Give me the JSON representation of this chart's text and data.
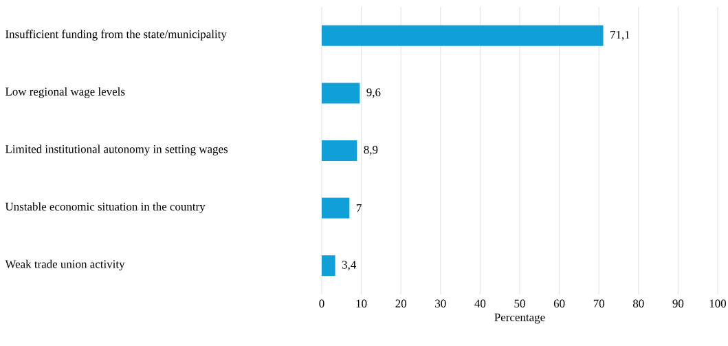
{
  "chart_data": {
    "type": "bar",
    "orientation": "horizontal",
    "xlabel": "Percentage",
    "categories": [
      "Insufficient funding from the state/municipality",
      "Low regional wage levels",
      "Limited institutional autonomy in setting wages",
      "Unstable economic situation in the country",
      "Weak trade union activity"
    ],
    "values": [
      71.1,
      9.6,
      8.9,
      7,
      3.4
    ],
    "value_labels": [
      "71,1",
      "9,6",
      "8,9",
      "7",
      "3,4"
    ],
    "color": "#119fd8",
    "xlim": [
      0,
      100
    ],
    "xticks": [
      0,
      10,
      20,
      30,
      40,
      50,
      60,
      70,
      80,
      90,
      100
    ],
    "grid": "x"
  }
}
